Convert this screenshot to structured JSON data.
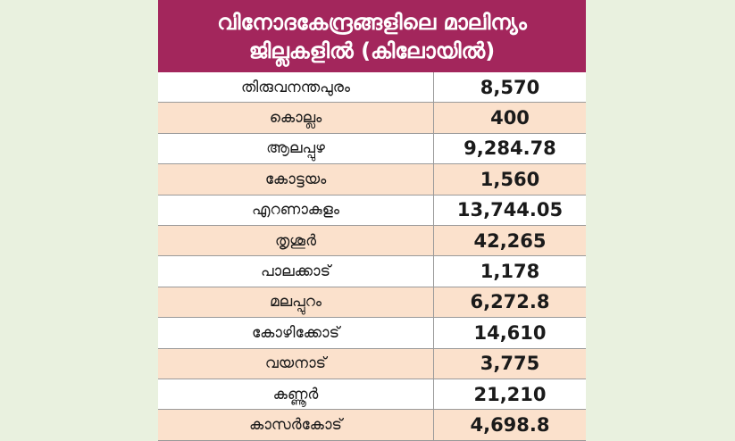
{
  "chart_data": {
    "type": "table",
    "title": [
      "വിനോദകേന്ദ്രങ്ങളിലെ മാലിന്യം",
      "ജില്ലകളിൽ (കിലോയിൽ)"
    ],
    "rows": [
      {
        "district": "തിരുവനന്തപുരം",
        "value": "8,570"
      },
      {
        "district": "കൊല്ലം",
        "value": "400"
      },
      {
        "district": "ആലപ്പുഴ",
        "value": "9,284.78"
      },
      {
        "district": "കോട്ടയം",
        "value": "1,560"
      },
      {
        "district": "എറണാകുളം",
        "value": "13,744.05"
      },
      {
        "district": "തൃശൂർ",
        "value": "42,265"
      },
      {
        "district": "പാലക്കാട്",
        "value": "1,178"
      },
      {
        "district": "മലപ്പുറം",
        "value": "6,272.8"
      },
      {
        "district": "കോഴിക്കോട്",
        "value": "14,610"
      },
      {
        "district": "വയനാട്",
        "value": "3,775"
      },
      {
        "district": "കണ്ണൂർ",
        "value": "21,210"
      },
      {
        "district": "കാസർകോട്",
        "value": "4,698.8"
      }
    ]
  }
}
